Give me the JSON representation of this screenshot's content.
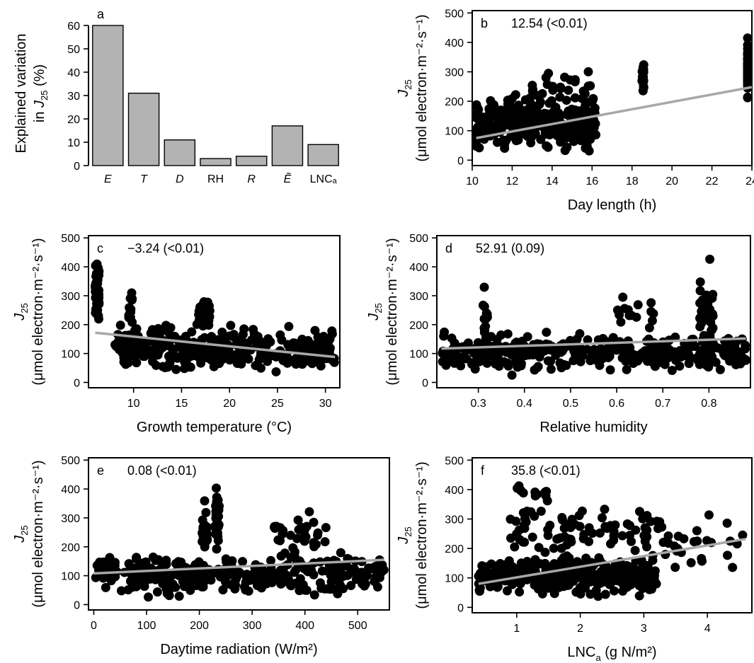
{
  "chart_data": [
    {
      "panel": "a",
      "type": "bar",
      "categories": [
        "E",
        "T",
        "D",
        "RH",
        "R",
        "Ẽ",
        "LNCₐ"
      ],
      "values": [
        60,
        31,
        11,
        3,
        4,
        17,
        9
      ],
      "ylabel_line1": "Explained variation",
      "ylabel_line2_prefix": "in ",
      "ylabel_var": "J",
      "ylabel_sub": "25",
      "ylabel_suffix": " (%)",
      "ylim": [
        0,
        60
      ],
      "yticks": [
        "0",
        "10",
        "20",
        "30",
        "40",
        "50",
        "60"
      ]
    },
    {
      "panel": "b",
      "type": "scatter",
      "annotation": "12.54 (<0.01)",
      "xlabel": "Day length (h)",
      "xlim": [
        10,
        24
      ],
      "ylim": [
        0,
        500
      ],
      "xticks": [
        "10",
        "12",
        "14",
        "16",
        "18",
        "20",
        "22",
        "24"
      ],
      "yticks": [
        "0",
        "100",
        "200",
        "300",
        "400",
        "500"
      ],
      "fit": {
        "x": [
          10.2,
          24
        ],
        "y": [
          75,
          248
        ]
      },
      "clusters": [
        {
          "x": [
            10,
            16.2
          ],
          "y": [
            10,
            240
          ],
          "n": 330
        },
        {
          "x": [
            12.9,
            16
          ],
          "y": [
            150,
            340
          ],
          "n": 30
        },
        {
          "x": [
            18.5,
            18.6
          ],
          "y": [
            190,
            370
          ],
          "n": 18
        },
        {
          "x": [
            24,
            24
          ],
          "y": [
            170,
            450
          ],
          "n": 45
        }
      ]
    },
    {
      "panel": "c",
      "type": "scatter",
      "annotation": "−3.24 (<0.01)",
      "xlabel": "Growth temperature (°C)",
      "xlim": [
        5.3,
        31.5
      ],
      "ylim": [
        0,
        500
      ],
      "xticks": [
        "10",
        "15",
        "20",
        "25",
        "30"
      ],
      "yticks": [
        "0",
        "100",
        "200",
        "300",
        "400",
        "500"
      ],
      "fit": {
        "x": [
          6,
          31
        ],
        "y": [
          172,
          88
        ]
      },
      "clusters": [
        {
          "x": [
            6,
            6.4
          ],
          "y": [
            170,
            450
          ],
          "n": 50
        },
        {
          "x": [
            8,
            31
          ],
          "y": [
            10,
            220
          ],
          "n": 330
        },
        {
          "x": [
            9.5,
            10
          ],
          "y": [
            160,
            340
          ],
          "n": 12
        },
        {
          "x": [
            16.5,
            18
          ],
          "y": [
            180,
            305
          ],
          "n": 25
        }
      ]
    },
    {
      "panel": "d",
      "type": "scatter",
      "annotation": "52.91 (0.09)",
      "xlabel": "Relative humidity",
      "xlim": [
        0.21,
        0.89
      ],
      "ylim": [
        0,
        500
      ],
      "xticks": [
        "0.3",
        "0.4",
        "0.5",
        "0.6",
        "0.7",
        "0.8"
      ],
      "yticks": [
        "0",
        "100",
        "200",
        "300",
        "400",
        "500"
      ],
      "fit": {
        "x": [
          0.22,
          0.88
        ],
        "y": [
          117,
          152
        ]
      },
      "clusters": [
        {
          "x": [
            0.22,
            0.88
          ],
          "y": [
            10,
            200
          ],
          "n": 330
        },
        {
          "x": [
            0.31,
            0.32
          ],
          "y": [
            30,
            340
          ],
          "n": 18
        },
        {
          "x": [
            0.78,
            0.81
          ],
          "y": [
            50,
            450
          ],
          "n": 40
        },
        {
          "x": [
            0.6,
            0.68
          ],
          "y": [
            150,
            310
          ],
          "n": 15
        }
      ]
    },
    {
      "panel": "e",
      "type": "scatter",
      "annotation": "0.08 (<0.01)",
      "xlabel": "Daytime radiation (W/m²)",
      "xlim": [
        -10,
        560
      ],
      "ylim": [
        0,
        500
      ],
      "xticks": [
        "0",
        "100",
        "200",
        "300",
        "400",
        "500"
      ],
      "yticks": [
        "0",
        "100",
        "200",
        "300",
        "400",
        "500"
      ],
      "fit": {
        "x": [
          0,
          550
        ],
        "y": [
          108,
          155
        ]
      },
      "clusters": [
        {
          "x": [
            0,
            550
          ],
          "y": [
            10,
            200
          ],
          "n": 330
        },
        {
          "x": [
            205,
            215
          ],
          "y": [
            150,
            370
          ],
          "n": 22
        },
        {
          "x": [
            230,
            238
          ],
          "y": [
            130,
            450
          ],
          "n": 35
        },
        {
          "x": [
            340,
            440
          ],
          "y": [
            150,
            330
          ],
          "n": 30
        }
      ]
    },
    {
      "panel": "f",
      "type": "scatter",
      "annotation": "35.8 (<0.01)",
      "xlabel_prefix": "LNC",
      "xlabel_sub": "a",
      "xlabel_suffix": " (g N/m²)",
      "xlim": [
        0.3,
        4.7
      ],
      "ylim": [
        0,
        500
      ],
      "xticks": [
        "1",
        "2",
        "3",
        "4"
      ],
      "yticks": [
        "0",
        "100",
        "200",
        "300",
        "400",
        "500"
      ],
      "fit": {
        "x": [
          0.4,
          4.6
        ],
        "y": [
          80,
          232
        ]
      },
      "clusters": [
        {
          "x": [
            0.4,
            3.2
          ],
          "y": [
            20,
            200
          ],
          "n": 330
        },
        {
          "x": [
            0.9,
            3.3
          ],
          "y": [
            150,
            380
          ],
          "n": 80
        },
        {
          "x": [
            1,
            1.5
          ],
          "y": [
            330,
            450
          ],
          "n": 12
        },
        {
          "x": [
            3,
            4.6
          ],
          "y": [
            80,
            330
          ],
          "n": 30
        }
      ]
    }
  ],
  "shared": {
    "ylabel_var": "J",
    "ylabel_sub": "25",
    "ylabel_unit": "(μmol electron·m⁻²·s⁻¹)"
  }
}
